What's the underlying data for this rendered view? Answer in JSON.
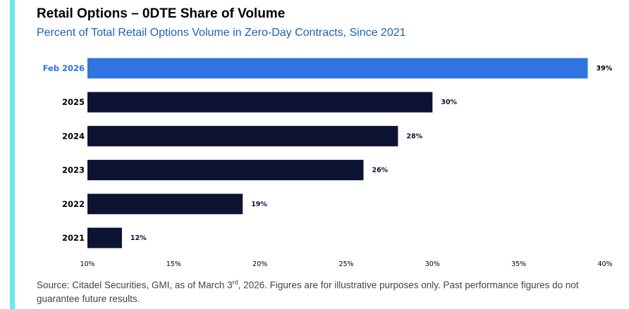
{
  "title": "Retail Options – 0DTE Share of Volume",
  "subtitle": "Percent of Total Retail Options Volume in Zero-Day Contracts, Since 2021",
  "source": {
    "before": "Source: Citadel Securities, GMI, as of March 3",
    "sup": "rd",
    "after": ", 2026. Figures are for illustrative purposes only. Past performance figures do not guarantee future results."
  },
  "colors": {
    "accent": "#6fe7ec",
    "highlight": "#2f74e0",
    "bar": "#0d1333",
    "subtitle": "#1f5fb4"
  },
  "chart_data": {
    "type": "bar",
    "orientation": "horizontal",
    "title": "Retail Options – 0DTE Share of Volume",
    "subtitle": "Percent of Total Retail Options Volume in Zero-Day Contracts, Since 2021",
    "categories": [
      "Feb 2026",
      "2025",
      "2024",
      "2023",
      "2022",
      "2021"
    ],
    "values": [
      39,
      30,
      28,
      26,
      19,
      12
    ],
    "value_labels": [
      "39%",
      "30%",
      "28%",
      "26%",
      "19%",
      "12%"
    ],
    "highlight": "Feb 2026",
    "xlim": [
      10,
      40
    ],
    "xticks": [
      10,
      15,
      20,
      25,
      30,
      35,
      40
    ],
    "xtick_labels": [
      "10%",
      "15%",
      "20%",
      "25%",
      "30%",
      "35%",
      "40%"
    ],
    "grid": false,
    "legend": "none"
  }
}
